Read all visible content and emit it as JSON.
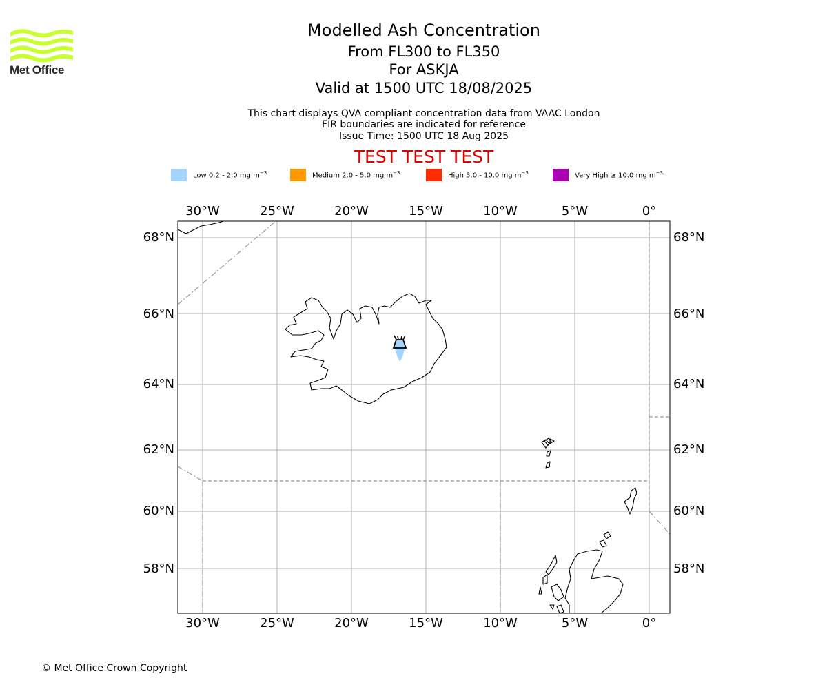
{
  "header": {
    "logo_text": "Met Office",
    "title": "Modelled Ash Concentration",
    "level": "From FL300 to FL350",
    "volcano": "For ASKJA",
    "valid": "Valid at 1500 UTC 18/08/2025",
    "desc1": "This chart displays QVA compliant concentration data from VAAC London",
    "desc2": "FIR boundaries are indicated for reference",
    "issue": "Issue Time: 1500 UTC 18 Aug 2025",
    "test_banner": "TEST TEST TEST"
  },
  "legend": [
    {
      "label": "Low 0.2 - 2.0 mg m",
      "sup": "−3",
      "color": "#a3d4fd"
    },
    {
      "label": "Medium 2.0 - 5.0 mg m",
      "sup": "−3",
      "color": "#ff9b00"
    },
    {
      "label": "High 5.0 - 10.0 mg m",
      "sup": "−3",
      "color": "#ff2c00"
    },
    {
      "label": "Very High  ≥  10.0 mg m",
      "sup": "−3",
      "color": "#ac00b4"
    }
  ],
  "map": {
    "lon_ticks": [
      "30°W",
      "25°W",
      "20°W",
      "15°W",
      "10°W",
      "5°W",
      "0°"
    ],
    "lat_ticks": [
      "68°N",
      "66°N",
      "64°N",
      "62°N",
      "60°N",
      "58°N"
    ],
    "gridline_color": "#b0b0b0",
    "fir_color": "#999999",
    "volcano_symbol": "volcano-icon",
    "ash_level": "Low 0.2 - 2.0 mg m−3"
  },
  "footer": {
    "copyright": "© Met Office Crown Copyright"
  }
}
